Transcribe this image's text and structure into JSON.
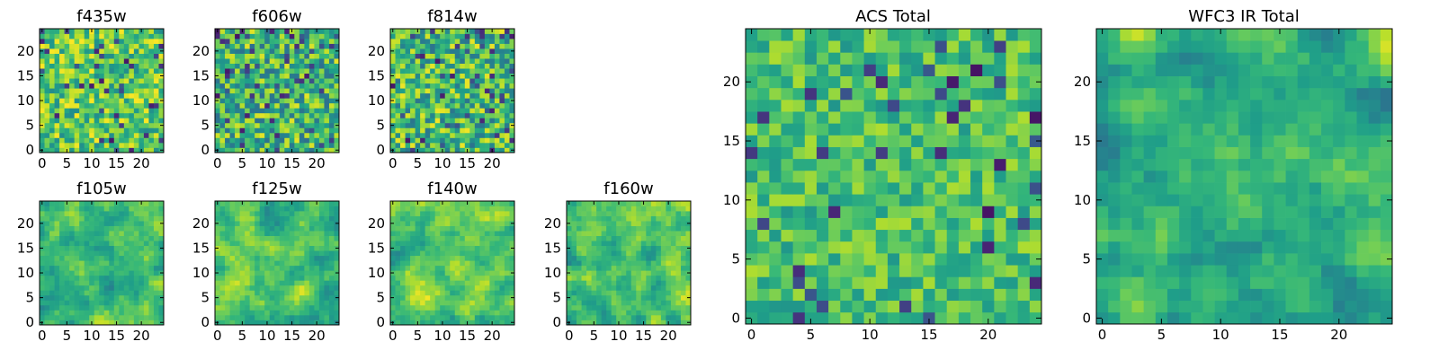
{
  "chart_data": [
    {
      "type": "heatmap",
      "title": "f435w",
      "size": 25,
      "colormap": "viridis",
      "xticks": [
        0,
        5,
        10,
        15,
        20
      ],
      "yticks": [
        0,
        5,
        10,
        15,
        20
      ],
      "texture": "noise",
      "seed": 11,
      "mean": 0.74,
      "spread": 0.26
    },
    {
      "type": "heatmap",
      "title": "f606w",
      "size": 25,
      "colormap": "viridis",
      "xticks": [
        0,
        5,
        10,
        15,
        20
      ],
      "yticks": [
        0,
        5,
        10,
        15,
        20
      ],
      "texture": "noise",
      "seed": 23,
      "mean": 0.66,
      "spread": 0.3
    },
    {
      "type": "heatmap",
      "title": "f814w",
      "size": 25,
      "colormap": "viridis",
      "xticks": [
        0,
        5,
        10,
        15,
        20
      ],
      "yticks": [
        0,
        5,
        10,
        15,
        20
      ],
      "texture": "noise",
      "seed": 37,
      "mean": 0.68,
      "spread": 0.3
    },
    {
      "type": "heatmap",
      "title": "f105w",
      "size": 25,
      "colormap": "viridis",
      "xticks": [
        0,
        5,
        10,
        15,
        20
      ],
      "yticks": [
        0,
        5,
        10,
        15,
        20
      ],
      "texture": "smooth",
      "seed": 41,
      "mean": 0.7,
      "spread": 0.22
    },
    {
      "type": "heatmap",
      "title": "f125w",
      "size": 25,
      "colormap": "viridis",
      "xticks": [
        0,
        5,
        10,
        15,
        20
      ],
      "yticks": [
        0,
        5,
        10,
        15,
        20
      ],
      "texture": "smooth",
      "seed": 53,
      "mean": 0.7,
      "spread": 0.22
    },
    {
      "type": "heatmap",
      "title": "f140w",
      "size": 25,
      "colormap": "viridis",
      "xticks": [
        0,
        5,
        10,
        15,
        20
      ],
      "yticks": [
        0,
        5,
        10,
        15,
        20
      ],
      "texture": "smooth",
      "seed": 67,
      "mean": 0.72,
      "spread": 0.22
    },
    {
      "type": "heatmap",
      "title": "f160w",
      "size": 25,
      "colormap": "viridis",
      "xticks": [
        0,
        5,
        10,
        15,
        20
      ],
      "yticks": [
        0,
        5,
        10,
        15,
        20
      ],
      "texture": "smooth",
      "seed": 79,
      "mean": 0.7,
      "spread": 0.22
    },
    {
      "type": "heatmap",
      "title": "ACS Total",
      "size": 25,
      "colormap": "viridis",
      "xticks": [
        0,
        5,
        10,
        15,
        20
      ],
      "yticks": [
        0,
        5,
        10,
        15,
        20
      ],
      "texture": "noise",
      "seed": 97,
      "mean": 0.7,
      "spread": 0.18
    },
    {
      "type": "heatmap",
      "title": "WFC3 IR Total",
      "size": 25,
      "colormap": "viridis",
      "xticks": [
        0,
        5,
        10,
        15,
        20
      ],
      "yticks": [
        0,
        5,
        10,
        15,
        20
      ],
      "texture": "smooth",
      "seed": 113,
      "mean": 0.64,
      "spread": 0.24
    }
  ]
}
